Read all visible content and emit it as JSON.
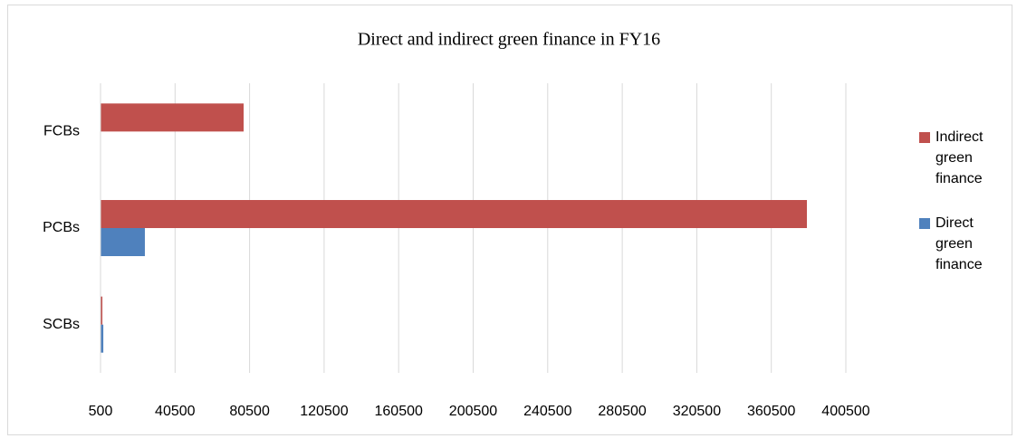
{
  "chart_data": {
    "type": "bar",
    "orientation": "horizontal",
    "title": "Direct and indirect green finance in FY16",
    "categories": [
      "SCBs",
      "PCBs",
      "FCBs"
    ],
    "series": [
      {
        "name": "Direct green finance",
        "color": "#4f81bd",
        "values": [
          2000,
          24300,
          null
        ]
      },
      {
        "name": "Indirect green finance",
        "color": "#c0504d",
        "values": [
          1500,
          379600,
          77300
        ]
      }
    ],
    "xlim": [
      500,
      400500
    ],
    "xticks": [
      500,
      40500,
      80500,
      120500,
      160500,
      200500,
      240500,
      280500,
      320500,
      360500,
      400500
    ],
    "grid": true,
    "legend": "right"
  }
}
